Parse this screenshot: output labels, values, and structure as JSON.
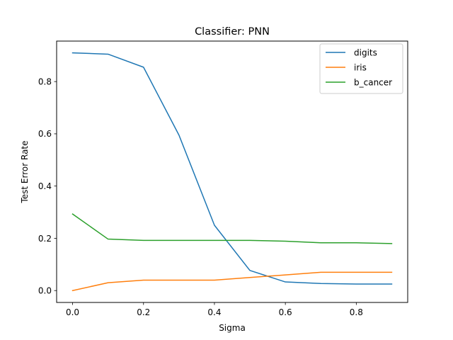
{
  "chart_data": {
    "type": "line",
    "title": "Classifier: PNN",
    "xlabel": "Sigma",
    "ylabel": "Test Error Rate",
    "xlim": [
      -0.045,
      0.945
    ],
    "ylim": [
      -0.0455,
      0.955
    ],
    "xticks": [
      0.0,
      0.2,
      0.4,
      0.6,
      0.8
    ],
    "xtick_labels": [
      "0.0",
      "0.2",
      "0.4",
      "0.6",
      "0.8"
    ],
    "yticks": [
      0.0,
      0.2,
      0.4,
      0.6,
      0.8
    ],
    "ytick_labels": [
      "0.0",
      "0.2",
      "0.4",
      "0.6",
      "0.8"
    ],
    "grid": false,
    "legend_position": "top-right",
    "x": [
      0.0,
      0.1,
      0.2,
      0.3,
      0.4,
      0.5,
      0.6,
      0.7,
      0.8,
      0.9
    ],
    "series": [
      {
        "name": "digits",
        "color": "#1f77b4",
        "values": [
          0.91,
          0.905,
          0.855,
          0.595,
          0.25,
          0.077,
          0.033,
          0.027,
          0.025,
          0.025
        ]
      },
      {
        "name": "iris",
        "color": "#ff7f0e",
        "values": [
          0.0,
          0.03,
          0.04,
          0.04,
          0.04,
          0.05,
          0.06,
          0.07,
          0.07,
          0.07
        ]
      },
      {
        "name": "b_cancer",
        "color": "#2ca02c",
        "values": [
          0.293,
          0.197,
          0.192,
          0.192,
          0.192,
          0.192,
          0.189,
          0.183,
          0.183,
          0.18
        ]
      }
    ]
  }
}
